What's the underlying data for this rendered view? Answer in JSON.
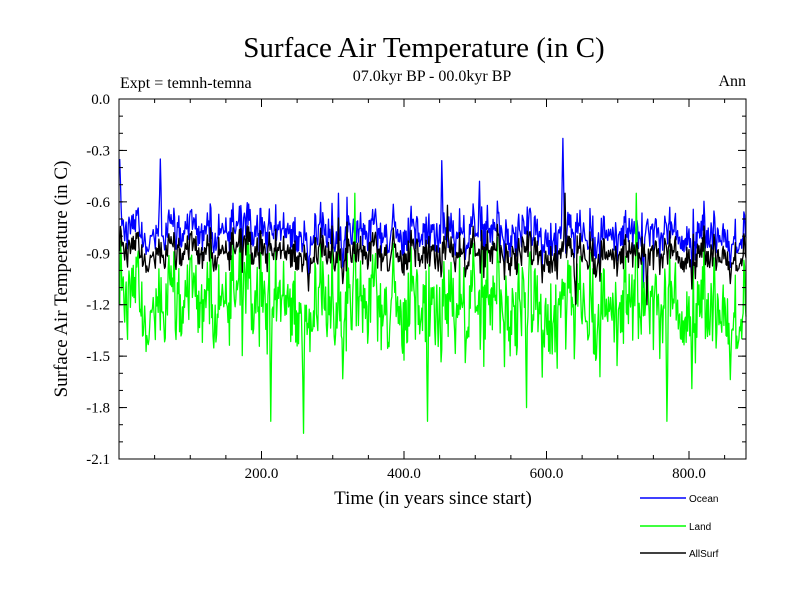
{
  "chart_data": {
    "type": "line",
    "title": "Surface Air Temperature (in C)",
    "subtitle": "07.0kyr BP - 00.0kyr BP",
    "left_annotation": "Expt = temnh-temna",
    "right_annotation": "Ann",
    "xlabel": "Time (in years since start)",
    "ylabel": "Surface Air Temperature (in C)",
    "xlim": [
      0,
      880
    ],
    "ylim": [
      -2.1,
      0.0
    ],
    "x_ticks": [
      200,
      400,
      600,
      800
    ],
    "x_tick_labels": [
      "200.0",
      "400.0",
      "600.0",
      "800.0"
    ],
    "y_ticks": [
      0.0,
      -0.3,
      -0.6,
      -0.9,
      -1.2,
      -1.5,
      -1.8,
      -2.1
    ],
    "y_tick_labels": [
      "0.0",
      "-0.3",
      "-0.6",
      "-0.9",
      "-1.2",
      "-1.5",
      "-1.8",
      "-2.1"
    ],
    "grid": false,
    "legend_position": "bottom-right, below plot",
    "n_points": 880,
    "series": [
      {
        "name": "Ocean",
        "color": "#0000ff",
        "mean": -0.78,
        "spread": 0.1,
        "peaks": [
          [
            0,
            -0.35
          ],
          [
            57,
            -0.35
          ],
          [
            452,
            -0.36
          ],
          [
            622,
            -0.23
          ],
          [
            505,
            -0.48
          ]
        ],
        "troughs": [
          [
            265,
            -1.05
          ],
          [
            735,
            -1.1
          ]
        ]
      },
      {
        "name": "Land",
        "color": "#00ff00",
        "mean": -1.2,
        "spread": 0.2,
        "peaks": [
          [
            330,
            -0.55
          ],
          [
            725,
            -0.55
          ]
        ],
        "troughs": [
          [
            258,
            -1.95
          ],
          [
            212,
            -1.88
          ],
          [
            432,
            -1.88
          ],
          [
            571,
            -1.8
          ],
          [
            768,
            -1.88
          ]
        ]
      },
      {
        "name": "AllSurf",
        "color": "#000000",
        "mean": -0.9,
        "spread": 0.09,
        "peaks": [
          [
            460,
            -0.62
          ],
          [
            625,
            -0.55
          ]
        ],
        "troughs": [
          [
            265,
            -1.12
          ],
          [
            640,
            -1.2
          ],
          [
            740,
            -1.2
          ]
        ]
      }
    ]
  }
}
